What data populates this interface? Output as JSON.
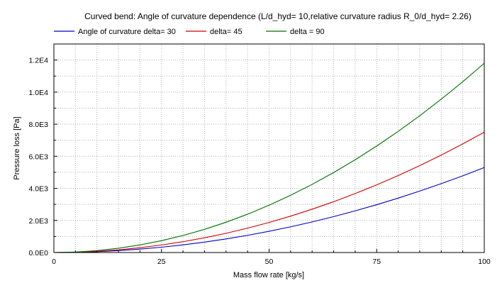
{
  "chart_data": {
    "type": "line",
    "title": "Curved bend: Angle of curvature dependence (L/d_hyd= 10,relative curvature radius R_0/d_hyd= 2.26)",
    "xlabel": "Mass flow rate [kg/s]",
    "ylabel": "Pressure loss [Pa]",
    "xlim": [
      0,
      100
    ],
    "ylim": [
      0,
      13000
    ],
    "x_ticks": [
      0,
      25,
      50,
      75,
      100
    ],
    "x_tick_labels": [
      "0",
      "25",
      "50",
      "75",
      "100"
    ],
    "y_ticks": [
      0,
      2000,
      4000,
      6000,
      8000,
      10000,
      12000
    ],
    "y_tick_labels": [
      "0.0E0",
      "2.0E3",
      "4.0E3",
      "6.0E3",
      "8.0E3",
      "1.0E4",
      "1.2E4"
    ],
    "grid": true,
    "legend_position": "top",
    "x": [
      0,
      5,
      10,
      15,
      20,
      25,
      30,
      35,
      40,
      45,
      50,
      55,
      60,
      65,
      70,
      75,
      80,
      85,
      90,
      95,
      100
    ],
    "series": [
      {
        "name": "Angle of curvature delta= 30",
        "color": "#0000c0",
        "values": [
          0,
          13,
          53,
          119,
          212,
          331,
          477,
          649,
          848,
          1073,
          1325,
          1603,
          1908,
          2239,
          2597,
          2981,
          3392,
          3829,
          4293,
          4783,
          5300
        ]
      },
      {
        "name": "delta= 45",
        "color": "#d00000",
        "values": [
          0,
          19,
          75,
          169,
          300,
          469,
          675,
          919,
          1200,
          1519,
          1875,
          2269,
          2700,
          3169,
          3675,
          4219,
          4800,
          5419,
          6075,
          6769,
          7500
        ]
      },
      {
        "name": "delta = 90",
        "color": "#007000",
        "values": [
          0,
          30,
          118,
          266,
          472,
          738,
          1062,
          1446,
          1888,
          2390,
          2950,
          3570,
          4248,
          4986,
          5782,
          6638,
          7552,
          8526,
          9558,
          10650,
          11800
        ]
      }
    ]
  }
}
